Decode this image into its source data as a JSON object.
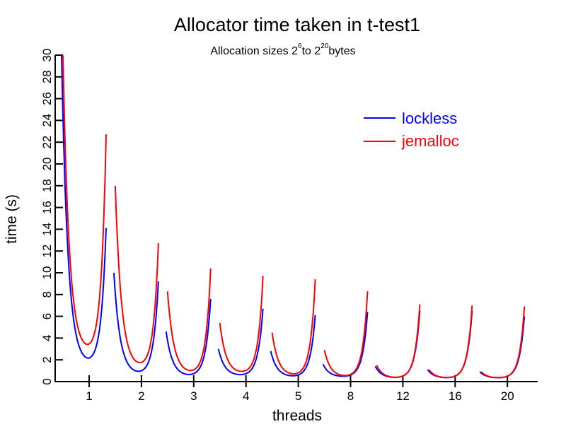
{
  "chart_data": {
    "type": "line",
    "title": "Allocator time taken in t-test1",
    "subtitle": {
      "prefix": "Allocation sizes 2",
      "exp1": "6",
      "middle": "to 2",
      "exp2": "20",
      "suffix": "bytes"
    },
    "xlabel": "threads",
    "ylabel": "time (s)",
    "ylim": [
      0,
      30
    ],
    "yticks": [
      "0",
      "2",
      "4",
      "6",
      "8",
      "10",
      "12",
      "14",
      "16",
      "18",
      "20",
      "22",
      "24",
      "26",
      "28",
      "30"
    ],
    "categories": [
      "1",
      "2",
      "3",
      "4",
      "5",
      "8",
      "12",
      "16",
      "20"
    ],
    "legend_position": "top-right",
    "note": "Each thread-count group shows a U-shaped sweep; values given as [start, minimum, end] in seconds",
    "series": [
      {
        "name": "lockless",
        "color": "#0000ff",
        "groups": [
          [
            30,
            1.4,
            14.1
          ],
          [
            10,
            0.6,
            9.2
          ],
          [
            4.6,
            0.45,
            7.6
          ],
          [
            3.0,
            0.5,
            6.7
          ],
          [
            2.8,
            0.4,
            6.1
          ],
          [
            1.6,
            0.4,
            6.4
          ],
          [
            1.4,
            0.3,
            6.5
          ],
          [
            1.1,
            0.3,
            6.5
          ],
          [
            0.9,
            0.3,
            6.0
          ]
        ]
      },
      {
        "name": "jemalloc",
        "color": "#ff0000",
        "groups": [
          [
            30,
            2.5,
            22.7
          ],
          [
            18,
            1.2,
            12.7
          ],
          [
            8.3,
            0.7,
            10.4
          ],
          [
            5.4,
            0.7,
            9.7
          ],
          [
            4.5,
            0.5,
            9.4
          ],
          [
            2.9,
            0.4,
            8.3
          ],
          [
            1.5,
            0.3,
            7.1
          ],
          [
            1.1,
            0.3,
            7.0
          ],
          [
            0.9,
            0.3,
            6.9
          ]
        ]
      }
    ]
  }
}
